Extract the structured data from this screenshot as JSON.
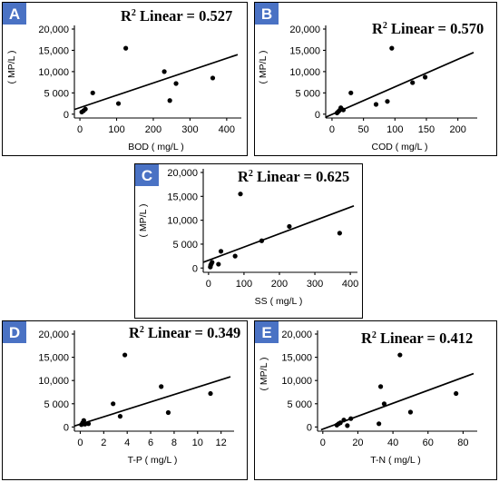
{
  "chart_data": [
    {
      "type": "scatter",
      "panel": "A",
      "annotation_prefix": "R",
      "annotation_sup": "2",
      "annotation_suffix": " Linear = 0.527",
      "xlabel": "BOD ( mg/L )",
      "ylabel": "( MP/L )",
      "xlim": [
        -15,
        430
      ],
      "ylim": [
        -900,
        20000
      ],
      "xticks": [
        0,
        100,
        200,
        300,
        400
      ],
      "yticks": [
        0,
        5000,
        10000,
        15000,
        20000
      ],
      "ytick_labels": [
        "0",
        "5 000",
        "10,000",
        "15,000",
        "20,000"
      ],
      "points": [
        [
          5,
          500
        ],
        [
          10,
          800
        ],
        [
          15,
          1200
        ],
        [
          35,
          5000
        ],
        [
          105,
          2500
        ],
        [
          125,
          15500
        ],
        [
          230,
          10000
        ],
        [
          245,
          3200
        ],
        [
          262,
          7200
        ],
        [
          362,
          8500
        ]
      ],
      "fit_line": [
        [
          -15,
          1100
        ],
        [
          430,
          14000
        ]
      ]
    },
    {
      "type": "scatter",
      "panel": "B",
      "annotation_prefix": "R",
      "annotation_sup": "2",
      "annotation_suffix": " Linear = 0.570",
      "xlabel": "COD ( mg/L )",
      "ylabel": "( MP/L )",
      "xlim": [
        -10,
        225
      ],
      "ylim": [
        -900,
        20000
      ],
      "xticks": [
        0,
        50,
        100,
        150,
        200
      ],
      "yticks": [
        0,
        5000,
        10000,
        15000,
        20000
      ],
      "ytick_labels": [
        "0",
        "5 000",
        "10,000",
        "15,000",
        "20,000"
      ],
      "points": [
        [
          8,
          300
        ],
        [
          10,
          600
        ],
        [
          12,
          900
        ],
        [
          14,
          1500
        ],
        [
          18,
          1000
        ],
        [
          30,
          5000
        ],
        [
          70,
          2300
        ],
        [
          88,
          3000
        ],
        [
          95,
          15500
        ],
        [
          128,
          7400
        ],
        [
          148,
          8700
        ]
      ],
      "fit_line": [
        [
          -10,
          -700
        ],
        [
          225,
          14500
        ]
      ]
    },
    {
      "type": "scatter",
      "panel": "C",
      "annotation_prefix": "R",
      "annotation_sup": "2",
      "annotation_suffix": " Linear = 0.625",
      "xlabel": "SS ( mg/L )",
      "ylabel": "( MP/L )",
      "xlim": [
        -15,
        410
      ],
      "ylim": [
        -900,
        20000
      ],
      "xticks": [
        0,
        100,
        200,
        300,
        400
      ],
      "yticks": [
        0,
        5000,
        10000,
        15000,
        20000
      ],
      "ytick_labels": [
        "0",
        "5 000",
        "10,000",
        "15,000",
        "20,000"
      ],
      "points": [
        [
          5,
          200
        ],
        [
          6,
          600
        ],
        [
          8,
          900
        ],
        [
          10,
          1200
        ],
        [
          28,
          800
        ],
        [
          35,
          3500
        ],
        [
          75,
          2500
        ],
        [
          90,
          15500
        ],
        [
          150,
          5700
        ],
        [
          228,
          8700
        ],
        [
          370,
          7300
        ]
      ],
      "fit_line": [
        [
          -15,
          1200
        ],
        [
          410,
          13000
        ]
      ]
    },
    {
      "type": "scatter",
      "panel": "D",
      "annotation_prefix": "R",
      "annotation_sup": "2",
      "annotation_suffix": " Linear = 0.349",
      "xlabel": "T-P ( mg/L )",
      "ylabel": "",
      "xlim": [
        -0.5,
        12.8
      ],
      "ylim": [
        -900,
        20000
      ],
      "xticks": [
        0,
        2,
        4,
        6,
        8,
        10,
        12
      ],
      "yticks": [
        0,
        5000,
        10000,
        15000,
        20000
      ],
      "ytick_labels": [
        "0",
        "5 000",
        "10,000",
        "15,000",
        "20,000"
      ],
      "points": [
        [
          0.1,
          500
        ],
        [
          0.2,
          900
        ],
        [
          0.3,
          1400
        ],
        [
          0.4,
          600
        ],
        [
          0.7,
          700
        ],
        [
          2.8,
          5000
        ],
        [
          3.4,
          2300
        ],
        [
          3.8,
          15500
        ],
        [
          6.9,
          8700
        ],
        [
          7.5,
          3100
        ],
        [
          11.1,
          7200
        ]
      ],
      "fit_line": [
        [
          -0.5,
          200
        ],
        [
          12.8,
          10800
        ]
      ]
    },
    {
      "type": "scatter",
      "panel": "E",
      "annotation_prefix": "R",
      "annotation_sup": "2",
      "annotation_suffix": " Linear = 0.412",
      "xlabel": "T-N ( mg/L )",
      "ylabel": "( MP/L )",
      "xlim": [
        -3,
        86
      ],
      "ylim": [
        -900,
        20000
      ],
      "xticks": [
        0,
        20,
        40,
        60,
        80
      ],
      "yticks": [
        0,
        5000,
        10000,
        15000,
        20000
      ],
      "ytick_labels": [
        "0",
        "5 000",
        "10,000",
        "15,000",
        "20,000"
      ],
      "points": [
        [
          8,
          400
        ],
        [
          9,
          700
        ],
        [
          10,
          900
        ],
        [
          12,
          1500
        ],
        [
          14,
          300
        ],
        [
          16,
          1800
        ],
        [
          32,
          700
        ],
        [
          33,
          8700
        ],
        [
          35,
          5000
        ],
        [
          44,
          15500
        ],
        [
          50,
          3200
        ],
        [
          76,
          7200
        ]
      ],
      "fit_line": [
        [
          -1,
          -600
        ],
        [
          86,
          11500
        ]
      ]
    }
  ]
}
